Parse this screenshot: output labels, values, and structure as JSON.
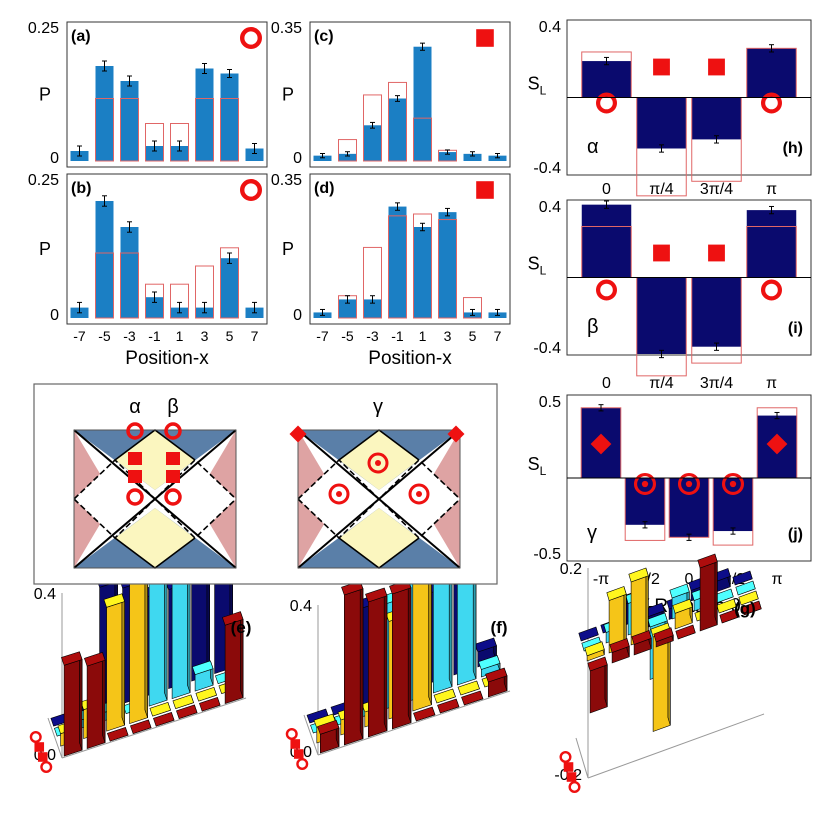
{
  "colors": {
    "bar": "#1b7fc4",
    "outline": "#e06666",
    "marker": "#ee1111",
    "navy": "#0a0a6e",
    "dark_red": "#8b0a0a",
    "gold": "#f5c518",
    "cyan": "#3fd8f0",
    "pink": "#dea3a3",
    "yellow_tile": "#fbf6bf",
    "blue_tile": "#5a7fa8"
  },
  "chart_data": [
    {
      "id": "a",
      "type": "bar",
      "label": "(a)",
      "marker": "ring",
      "categories": [
        "-7",
        "-5",
        "-3",
        "-1",
        "1",
        "3",
        "5",
        "7"
      ],
      "values": [
        0.02,
        0.19,
        0.16,
        0.03,
        0.03,
        0.185,
        0.175,
        0.025
      ],
      "errors": [
        0.01,
        0.01,
        0.01,
        0.01,
        0.01,
        0.01,
        0.008,
        0.01
      ],
      "theory": [
        0,
        0.125,
        0.125,
        0.075,
        0.075,
        0.125,
        0.125,
        0
      ],
      "ylabel": "P",
      "ytick_labels": [
        "0",
        "0.25"
      ],
      "ylim": [
        0,
        0.25
      ],
      "xlabel": ""
    },
    {
      "id": "b",
      "type": "bar",
      "label": "(b)",
      "marker": "ring",
      "categories": [
        "-7",
        "-5",
        "-3",
        "-1",
        "1",
        "3",
        "5",
        "7"
      ],
      "values": [
        0.02,
        0.225,
        0.175,
        0.04,
        0.02,
        0.02,
        0.115,
        0.02
      ],
      "errors": [
        0.01,
        0.01,
        0.01,
        0.01,
        0.01,
        0.01,
        0.01,
        0.01
      ],
      "theory": [
        0,
        0.125,
        0.125,
        0.065,
        0.065,
        0.1,
        0.135,
        0
      ],
      "ylabel": "P",
      "ytick_labels": [
        "0",
        "0.25"
      ],
      "ylim": [
        0,
        0.25
      ],
      "xlabel": "Position-x"
    },
    {
      "id": "c",
      "type": "bar",
      "label": "(c)",
      "marker": "square",
      "categories": [
        "-7",
        "-5",
        "-3",
        "-1",
        "1",
        "3",
        "5",
        "7"
      ],
      "values": [
        0.015,
        0.02,
        0.1,
        0.175,
        0.32,
        0.025,
        0.02,
        0.015
      ],
      "errors": [
        0.006,
        0.006,
        0.008,
        0.008,
        0.01,
        0.006,
        0.006,
        0.006
      ],
      "theory": [
        0,
        0.06,
        0.185,
        0.22,
        0.12,
        0.03,
        0,
        0
      ],
      "ylabel": "P",
      "ytick_labels": [
        "0",
        "0.35"
      ],
      "ylim": [
        0,
        0.35
      ],
      "xlabel": ""
    },
    {
      "id": "d",
      "type": "bar",
      "label": "(d)",
      "marker": "square",
      "categories": [
        "-7",
        "-5",
        "-3",
        "-1",
        "1",
        "3",
        "5",
        "7"
      ],
      "values": [
        0.015,
        0.05,
        0.05,
        0.3,
        0.245,
        0.285,
        0.015,
        0.015
      ],
      "errors": [
        0.008,
        0.01,
        0.01,
        0.01,
        0.01,
        0.01,
        0.008,
        0.008
      ],
      "theory": [
        0,
        0.06,
        0.19,
        0.275,
        0.28,
        0.265,
        0.055,
        0
      ],
      "ylabel": "P",
      "ytick_labels": [
        "0",
        "0.35"
      ],
      "ylim": [
        0,
        0.35
      ],
      "xlabel": "Position-x"
    },
    {
      "id": "h",
      "type": "bar",
      "label": "(h)",
      "greek": "α",
      "categories": [
        "0",
        "π/4",
        "3π/4",
        "π"
      ],
      "values": [
        0.2,
        -0.28,
        -0.23,
        0.27
      ],
      "errors": [
        0.02,
        0.02,
        0.02,
        0.02
      ],
      "theory": [
        0.25,
        -0.54,
        -0.46,
        0.27
      ],
      "markers": [
        "ring",
        "square",
        "square",
        "ring"
      ],
      "ylabel": "S_L",
      "ytick_labels": [
        "0.4",
        "-0.4"
      ],
      "ylim": [
        -0.4,
        0.4
      ],
      "xlabel": ""
    },
    {
      "id": "i",
      "type": "bar",
      "label": "(i)",
      "greek": "β",
      "categories": [
        "0",
        "π/4",
        "3π/4",
        "π"
      ],
      "values": [
        0.4,
        -0.42,
        -0.38,
        0.37
      ],
      "errors": [
        0.02,
        0.02,
        0.02,
        0.02
      ],
      "theory": [
        0.28,
        -0.54,
        -0.47,
        0.28
      ],
      "markers": [
        "ring",
        "square",
        "square",
        "ring"
      ],
      "ylabel": "S_L",
      "ytick_labels": [
        "0.4",
        "-0.4"
      ],
      "ylim": [
        -0.4,
        0.4
      ],
      "xlabel": ""
    },
    {
      "id": "j",
      "type": "bar",
      "label": "(j)",
      "greek": "γ",
      "categories": [
        "-π",
        "-π/2",
        "0",
        "π/2",
        "π"
      ],
      "values": [
        0.45,
        -0.3,
        -0.38,
        -0.34,
        0.4
      ],
      "errors": [
        0.02,
        0.02,
        0.02,
        0.02,
        0.02
      ],
      "theory": [
        0.45,
        -0.4,
        -0.38,
        -0.43,
        0.45
      ],
      "markers": [
        "diamond",
        "target",
        "target",
        "target",
        "diamond"
      ],
      "ylabel": "S_L",
      "ytick_labels": [
        "0.5",
        "-0.5"
      ],
      "ylim": [
        -0.5,
        0.5
      ],
      "xlabel": "Y-Rotation θ"
    },
    {
      "id": "e",
      "type": "bar3d",
      "label": "(e)",
      "zlim": [
        0,
        0.4
      ],
      "ztick_labels": [
        "0.0",
        "0.4"
      ],
      "row_markers": [
        "ring",
        "square",
        "square",
        "ring"
      ],
      "rows": [
        {
          "color": "dark_red",
          "values": [
            0.22,
            0.2,
            0.0,
            0.0,
            0.0,
            0.0,
            0.0,
            0.19
          ]
        },
        {
          "color": "gold",
          "values": [
            0.03,
            0.07,
            0.3,
            0.34,
            0.0,
            0.0,
            0.0,
            0.0
          ]
        },
        {
          "color": "cyan",
          "values": [
            0.0,
            0.02,
            0.02,
            0.0,
            0.36,
            0.34,
            0.04,
            0.0
          ]
        },
        {
          "color": "navy",
          "values": [
            0.0,
            0.01,
            0.3,
            0.28,
            0.24,
            0.24,
            0.26,
            0.26
          ]
        }
      ]
    },
    {
      "id": "f",
      "type": "bar3d",
      "label": "(f)",
      "zlim": [
        0,
        0.4
      ],
      "ztick_labels": [
        "0.0",
        "0.4"
      ],
      "row_markers": [
        "ring",
        "square",
        "square",
        "ring"
      ],
      "rows": [
        {
          "color": "dark_red",
          "values": [
            0.05,
            0.4,
            0.36,
            0.36,
            0.0,
            0.0,
            0.0,
            0.04
          ]
        },
        {
          "color": "gold",
          "values": [
            0.04,
            0.04,
            0.04,
            0.26,
            0.5,
            0.0,
            0.0,
            0.0
          ]
        },
        {
          "color": "cyan",
          "values": [
            0.0,
            0.0,
            0.0,
            0.28,
            0.33,
            0.33,
            0.3,
            0.02
          ]
        },
        {
          "color": "navy",
          "values": [
            0.0,
            0.0,
            0.26,
            0.24,
            0.26,
            0.24,
            0.24,
            0.04
          ]
        }
      ]
    },
    {
      "id": "g",
      "type": "bar3d",
      "label": "(g)",
      "zlim": [
        -0.2,
        0.2
      ],
      "ztick_labels": [
        "0.2",
        "-0.2"
      ],
      "row_markers": [
        "ring",
        "square",
        "square",
        "ring"
      ],
      "rows": [
        {
          "color": "dark_red",
          "values": [
            -0.08,
            0.02,
            0.02,
            0.01,
            0.0,
            0.12,
            0.0,
            0.0
          ]
        },
        {
          "color": "gold",
          "values": [
            0.01,
            0.1,
            0.12,
            -0.18,
            0.03,
            0.0,
            0.0,
            0.0
          ]
        },
        {
          "color": "cyan",
          "values": [
            0.0,
            0.02,
            0.06,
            -0.1,
            0.04,
            0.02,
            0.0,
            0.0
          ]
        },
        {
          "color": "navy",
          "values": [
            0.0,
            0.0,
            0.04,
            -0.02,
            -0.02,
            0.02,
            0.02,
            0.0
          ]
        }
      ]
    }
  ],
  "diagram": {
    "labels": [
      "α",
      "β",
      "γ"
    ]
  }
}
